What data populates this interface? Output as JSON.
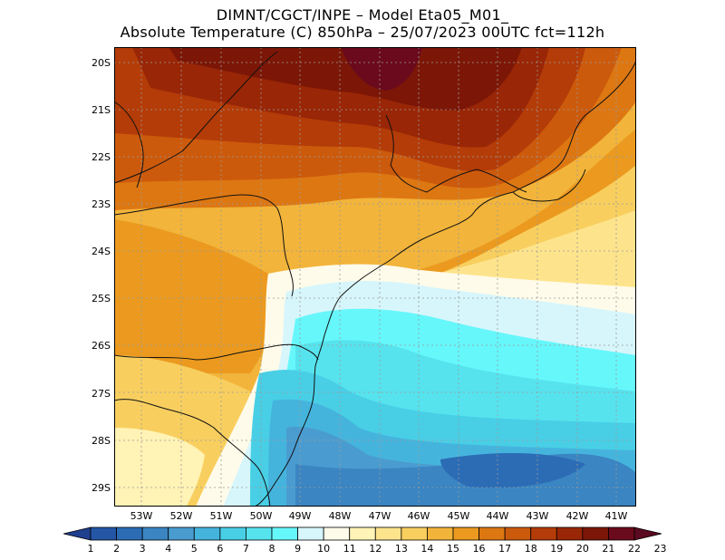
{
  "header": {
    "line1": "DIMNT/CGCT/INPE –  Model Eta05_M01_",
    "line2": "Absolute Temperature (C) 850hPa –  25/07/2023 00UTC fct=112h"
  },
  "map": {
    "lat_labels": [
      "20S",
      "21S",
      "22S",
      "23S",
      "24S",
      "25S",
      "26S",
      "27S",
      "28S",
      "29S"
    ],
    "lon_labels": [
      "53W",
      "52W",
      "51W",
      "50W",
      "49W",
      "48W",
      "47W",
      "46W",
      "45W",
      "44W",
      "43W",
      "42W",
      "41W"
    ],
    "lat_range": [
      -29.5,
      -19.5
    ],
    "lon_range": [
      -53.5,
      -40.3
    ]
  },
  "colorbar": {
    "labels": [
      "1",
      "2",
      "3",
      "4",
      "5",
      "6",
      "7",
      "8",
      "9",
      "10",
      "11",
      "12",
      "13",
      "14",
      "15",
      "16",
      "17",
      "18",
      "19",
      "20",
      "21",
      "22",
      "23"
    ],
    "colors": [
      "#1f3f8f",
      "#2456a6",
      "#2b6cb5",
      "#3a85c2",
      "#4a9cd0",
      "#45b4dd",
      "#48cfe6",
      "#56e3ee",
      "#66f7fb",
      "#d7f6fb",
      "#fffbea",
      "#fff3b5",
      "#fde48c",
      "#f8cf5f",
      "#f2b43a",
      "#eb9a1f",
      "#dd7712",
      "#cc5a0c",
      "#b43c08",
      "#992606",
      "#7c1707",
      "#6b0a1c",
      "#5a0a21"
    ]
  }
}
